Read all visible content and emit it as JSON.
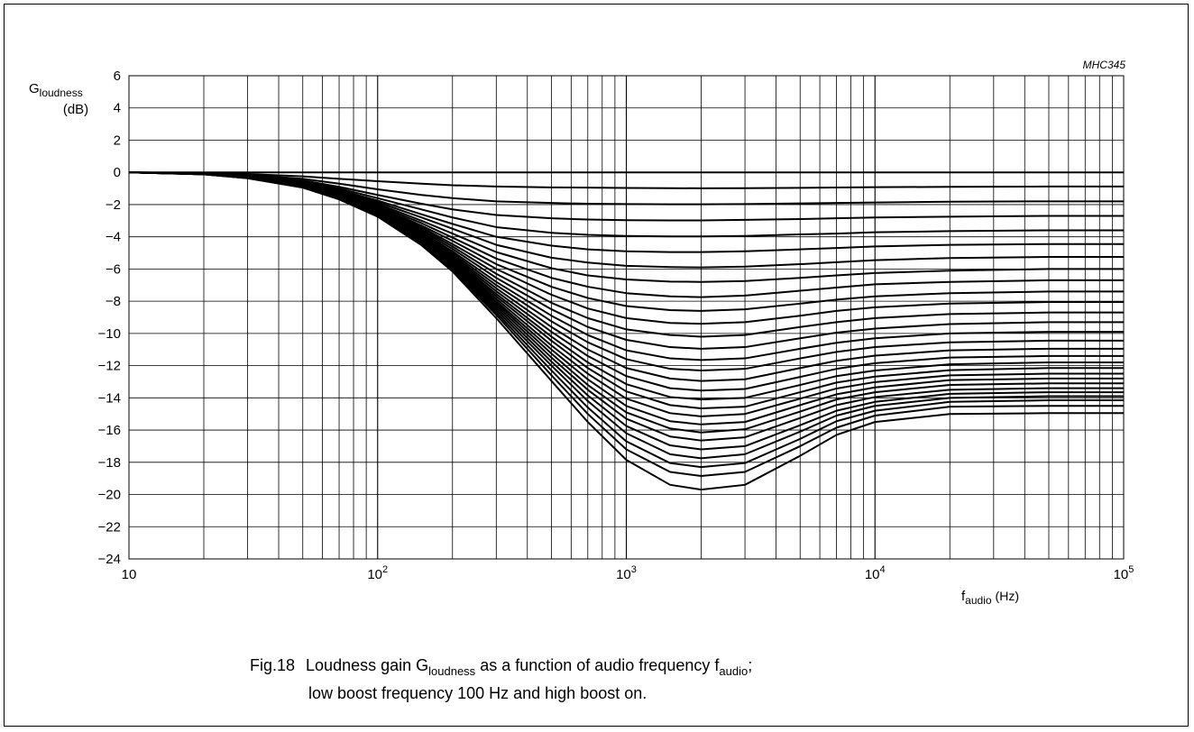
{
  "figure": {
    "reference": "MHC345",
    "caption_line1": {
      "number": "Fig.18",
      "text_a": "Loudness gain G",
      "sub_a": "loudness",
      "text_b": " as a function of audio frequency f",
      "sub_b": "audio",
      "text_c": ";"
    },
    "caption_line2": "low boost frequency 100 Hz and high boost on."
  },
  "chart_data": {
    "type": "line",
    "y_axis": {
      "symbol": "G",
      "subscript": "loudness",
      "unit": "(dB)"
    },
    "x_axis": {
      "symbol": "f",
      "subscript": "audio",
      "unit": "(Hz)"
    },
    "x_scale": "log",
    "xlim": [
      10,
      100000
    ],
    "ylim": [
      -24,
      6
    ],
    "grid": true,
    "x_tick_labels": [
      {
        "value": 10,
        "base": "10",
        "exp": ""
      },
      {
        "value": 100,
        "base": "10",
        "exp": "2"
      },
      {
        "value": 1000,
        "base": "10",
        "exp": "3"
      },
      {
        "value": 10000,
        "base": "10",
        "exp": "4"
      },
      {
        "value": 100000,
        "base": "10",
        "exp": "5"
      }
    ],
    "y_tick_labels": [
      "6",
      "4",
      "2",
      "0",
      "−2",
      "−4",
      "−6",
      "−8",
      "−10",
      "−12",
      "−14",
      "−16",
      "−18",
      "−20",
      "−22",
      "−24"
    ],
    "y_tick_values": [
      6,
      4,
      2,
      0,
      -2,
      -4,
      -6,
      -8,
      -10,
      -12,
      -14,
      -16,
      -18,
      -20,
      -22,
      -24
    ],
    "x": [
      10,
      20,
      30,
      50,
      70,
      100,
      150,
      200,
      300,
      500,
      700,
      1000,
      1500,
      2000,
      3000,
      5000,
      7000,
      10000,
      20000,
      50000,
      100000
    ],
    "series": [
      {
        "values": [
          0,
          0,
          0,
          0,
          0,
          0,
          0,
          0,
          0,
          0,
          0,
          0,
          0,
          0,
          0,
          0,
          0,
          0,
          0,
          0,
          0
        ]
      },
      {
        "values": [
          0,
          -0.03,
          -0.1,
          -0.25,
          -0.4,
          -0.55,
          -0.7,
          -0.8,
          -0.88,
          -0.93,
          -0.95,
          -0.97,
          -0.98,
          -0.99,
          -0.98,
          -0.96,
          -0.94,
          -0.92,
          -0.9,
          -0.88,
          -0.88
        ]
      },
      {
        "values": [
          0,
          -0.05,
          -0.15,
          -0.4,
          -0.7,
          -1.05,
          -1.4,
          -1.6,
          -1.8,
          -1.9,
          -1.95,
          -1.97,
          -1.98,
          -1.98,
          -1.97,
          -1.93,
          -1.9,
          -1.87,
          -1.82,
          -1.8,
          -1.8
        ]
      },
      {
        "values": [
          0,
          -0.05,
          -0.18,
          -0.5,
          -0.9,
          -1.4,
          -1.95,
          -2.3,
          -2.65,
          -2.85,
          -2.93,
          -2.97,
          -2.98,
          -2.98,
          -2.95,
          -2.9,
          -2.85,
          -2.8,
          -2.75,
          -2.7,
          -2.7
        ]
      },
      {
        "values": [
          0,
          -0.06,
          -0.2,
          -0.55,
          -1.0,
          -1.6,
          -2.3,
          -2.8,
          -3.4,
          -3.75,
          -3.88,
          -3.95,
          -3.98,
          -3.98,
          -3.95,
          -3.85,
          -3.8,
          -3.72,
          -3.65,
          -3.6,
          -3.6
        ]
      },
      {
        "values": [
          0,
          -0.07,
          -0.22,
          -0.6,
          -1.1,
          -1.75,
          -2.6,
          -3.2,
          -4.0,
          -4.55,
          -4.78,
          -4.9,
          -4.95,
          -4.95,
          -4.9,
          -4.78,
          -4.7,
          -4.6,
          -4.5,
          -4.45,
          -4.45
        ]
      },
      {
        "values": [
          0,
          -0.07,
          -0.24,
          -0.65,
          -1.15,
          -1.85,
          -2.8,
          -3.5,
          -4.5,
          -5.3,
          -5.6,
          -5.8,
          -5.88,
          -5.9,
          -5.85,
          -5.7,
          -5.58,
          -5.45,
          -5.32,
          -5.25,
          -5.25
        ]
      },
      {
        "values": [
          0,
          -0.08,
          -0.25,
          -0.68,
          -1.2,
          -1.95,
          -3.0,
          -3.8,
          -4.95,
          -5.95,
          -6.4,
          -6.65,
          -6.78,
          -6.8,
          -6.75,
          -6.55,
          -6.4,
          -6.25,
          -6.1,
          -6.0,
          -6.0
        ]
      },
      {
        "values": [
          0,
          -0.08,
          -0.26,
          -0.7,
          -1.25,
          -2.05,
          -3.15,
          -4.05,
          -5.35,
          -6.55,
          -7.1,
          -7.5,
          -7.7,
          -7.75,
          -7.65,
          -7.35,
          -7.15,
          -6.95,
          -6.8,
          -6.7,
          -6.7
        ]
      },
      {
        "values": [
          0,
          -0.08,
          -0.27,
          -0.72,
          -1.3,
          -2.12,
          -3.3,
          -4.25,
          -5.7,
          -7.1,
          -7.8,
          -8.3,
          -8.55,
          -8.6,
          -8.5,
          -8.15,
          -7.9,
          -7.7,
          -7.5,
          -7.4,
          -7.4
        ]
      },
      {
        "values": [
          0,
          -0.09,
          -0.28,
          -0.74,
          -1.33,
          -2.18,
          -3.4,
          -4.45,
          -6.0,
          -7.6,
          -8.45,
          -9.05,
          -9.35,
          -9.4,
          -9.3,
          -8.9,
          -8.6,
          -8.38,
          -8.15,
          -8.05,
          -8.05
        ]
      },
      {
        "values": [
          0,
          -0.09,
          -0.29,
          -0.76,
          -1.36,
          -2.23,
          -3.5,
          -4.6,
          -6.3,
          -8.1,
          -9.05,
          -9.75,
          -10.1,
          -10.2,
          -10.1,
          -9.6,
          -9.3,
          -9.05,
          -8.8,
          -8.7,
          -8.7
        ]
      },
      {
        "values": [
          0,
          -0.09,
          -0.29,
          -0.78,
          -1.39,
          -2.28,
          -3.6,
          -4.75,
          -6.55,
          -8.5,
          -9.6,
          -10.4,
          -10.85,
          -10.95,
          -10.85,
          -10.3,
          -9.95,
          -9.7,
          -9.42,
          -9.3,
          -9.3
        ]
      },
      {
        "values": [
          0,
          -0.1,
          -0.3,
          -0.8,
          -1.42,
          -2.33,
          -3.7,
          -4.9,
          -6.8,
          -8.9,
          -10.1,
          -11.05,
          -11.55,
          -11.65,
          -11.55,
          -10.95,
          -10.58,
          -10.3,
          -10.0,
          -9.9,
          -9.9
        ]
      },
      {
        "values": [
          0,
          -0.1,
          -0.3,
          -0.81,
          -1.44,
          -2.37,
          -3.78,
          -5.02,
          -7.0,
          -9.25,
          -10.55,
          -11.6,
          -12.2,
          -12.3,
          -12.2,
          -11.55,
          -11.15,
          -10.85,
          -10.55,
          -10.45,
          -10.45
        ]
      },
      {
        "values": [
          0,
          -0.1,
          -0.31,
          -0.82,
          -1.46,
          -2.4,
          -3.85,
          -5.12,
          -7.2,
          -9.6,
          -11.0,
          -12.15,
          -12.8,
          -12.95,
          -12.85,
          -12.15,
          -11.7,
          -11.38,
          -11.05,
          -10.95,
          -10.95
        ]
      },
      {
        "values": [
          0,
          -0.1,
          -0.31,
          -0.83,
          -1.48,
          -2.43,
          -3.92,
          -5.22,
          -7.38,
          -9.9,
          -11.4,
          -12.65,
          -13.4,
          -13.55,
          -13.45,
          -12.7,
          -12.2,
          -11.85,
          -11.5,
          -11.4,
          -11.4
        ]
      },
      {
        "values": [
          0,
          -0.1,
          -0.32,
          -0.84,
          -1.5,
          -2.46,
          -3.98,
          -5.32,
          -7.55,
          -10.2,
          -11.8,
          -13.15,
          -13.95,
          -14.1,
          -14.0,
          -13.2,
          -12.65,
          -12.3,
          -11.92,
          -11.8,
          -11.8
        ]
      },
      {
        "values": [
          0,
          -0.1,
          -0.32,
          -0.85,
          -1.52,
          -2.49,
          -4.04,
          -5.4,
          -7.7,
          -10.45,
          -12.15,
          -13.6,
          -14.45,
          -14.65,
          -14.55,
          -13.65,
          -13.05,
          -12.68,
          -12.28,
          -12.15,
          -12.15
        ]
      },
      {
        "values": [
          0,
          -0.11,
          -0.33,
          -0.86,
          -1.54,
          -2.52,
          -4.1,
          -5.5,
          -7.85,
          -10.75,
          -12.5,
          -14.05,
          -14.95,
          -15.15,
          -15.0,
          -14.05,
          -13.42,
          -13.02,
          -12.6,
          -12.5,
          -12.5
        ]
      },
      {
        "values": [
          0,
          -0.11,
          -0.33,
          -0.87,
          -1.55,
          -2.55,
          -4.15,
          -5.57,
          -8.0,
          -11.0,
          -12.85,
          -14.5,
          -15.45,
          -15.65,
          -15.5,
          -14.45,
          -13.78,
          -13.35,
          -12.9,
          -12.8,
          -12.8
        ]
      },
      {
        "values": [
          0,
          -0.11,
          -0.34,
          -0.88,
          -1.57,
          -2.57,
          -4.2,
          -5.65,
          -8.12,
          -11.25,
          -13.2,
          -14.9,
          -15.9,
          -16.15,
          -15.95,
          -14.85,
          -14.1,
          -13.65,
          -13.2,
          -13.1,
          -13.1
        ]
      },
      {
        "values": [
          0,
          -0.11,
          -0.34,
          -0.89,
          -1.58,
          -2.6,
          -4.25,
          -5.72,
          -8.25,
          -11.5,
          -13.5,
          -15.3,
          -16.4,
          -16.65,
          -16.45,
          -15.25,
          -14.45,
          -13.95,
          -13.5,
          -13.4,
          -13.4
        ]
      },
      {
        "values": [
          0,
          -0.11,
          -0.34,
          -0.9,
          -1.6,
          -2.62,
          -4.3,
          -5.8,
          -8.4,
          -11.75,
          -13.85,
          -15.75,
          -16.95,
          -17.2,
          -17.0,
          -15.7,
          -14.8,
          -14.25,
          -13.75,
          -13.65,
          -13.65
        ]
      },
      {
        "values": [
          0,
          -0.12,
          -0.35,
          -0.91,
          -1.62,
          -2.65,
          -4.35,
          -5.88,
          -8.55,
          -12.0,
          -14.2,
          -16.2,
          -17.5,
          -17.75,
          -17.5,
          -16.1,
          -15.1,
          -14.5,
          -14.0,
          -13.9,
          -13.9
        ]
      },
      {
        "values": [
          0,
          -0.12,
          -0.35,
          -0.92,
          -1.64,
          -2.68,
          -4.4,
          -5.95,
          -8.7,
          -12.3,
          -14.6,
          -16.7,
          -18.05,
          -18.3,
          -18.05,
          -16.55,
          -15.45,
          -14.8,
          -14.25,
          -14.15,
          -14.15
        ]
      },
      {
        "values": [
          0,
          -0.12,
          -0.36,
          -0.93,
          -1.66,
          -2.71,
          -4.46,
          -6.05,
          -8.85,
          -12.6,
          -15.0,
          -17.2,
          -18.6,
          -18.85,
          -18.6,
          -17.0,
          -15.85,
          -15.1,
          -14.55,
          -14.5,
          -14.5
        ]
      },
      {
        "values": [
          0,
          -0.12,
          -0.37,
          -0.95,
          -1.68,
          -2.75,
          -4.52,
          -6.15,
          -9.05,
          -12.95,
          -15.5,
          -17.85,
          -19.4,
          -19.7,
          -19.4,
          -17.6,
          -16.3,
          -15.5,
          -15.0,
          -14.95,
          -14.95
        ]
      }
    ]
  }
}
